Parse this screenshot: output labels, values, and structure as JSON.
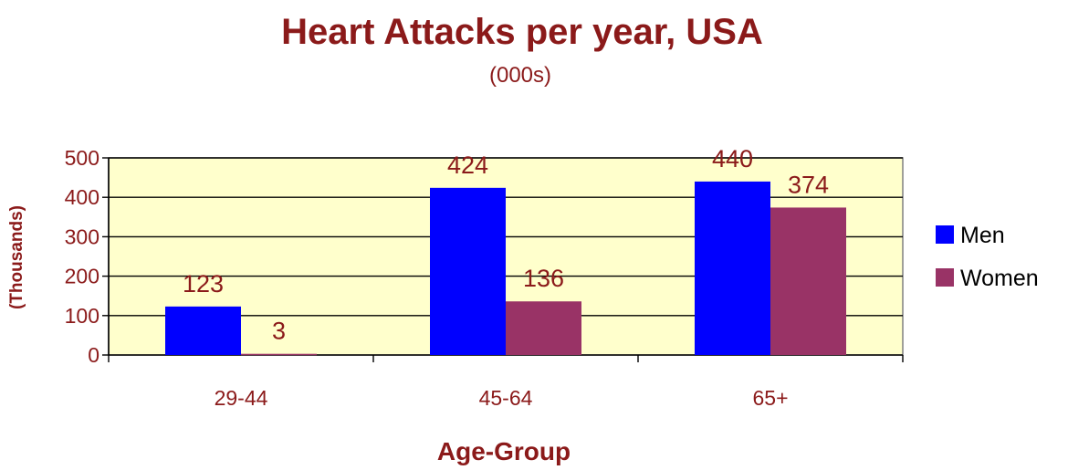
{
  "chart_data": {
    "type": "bar",
    "title": "Heart Attacks per year, USA",
    "subtitle": "(000s)",
    "xlabel": "Age-Group",
    "ylabel": "(Thousands)",
    "categories": [
      "29-44",
      "45-64",
      "65+"
    ],
    "series": [
      {
        "name": "Men",
        "values": [
          123,
          424,
          440
        ],
        "color": "#0000ff"
      },
      {
        "name": "Women",
        "values": [
          3,
          136,
          374
        ],
        "color": "#993366"
      }
    ],
    "ylim": [
      0,
      500
    ],
    "yticks": [
      0,
      100,
      200,
      300,
      400,
      500
    ],
    "grid": true,
    "legend_position": "right",
    "plot_background": "#ffffcc",
    "text_color": "#8b1a1a"
  }
}
